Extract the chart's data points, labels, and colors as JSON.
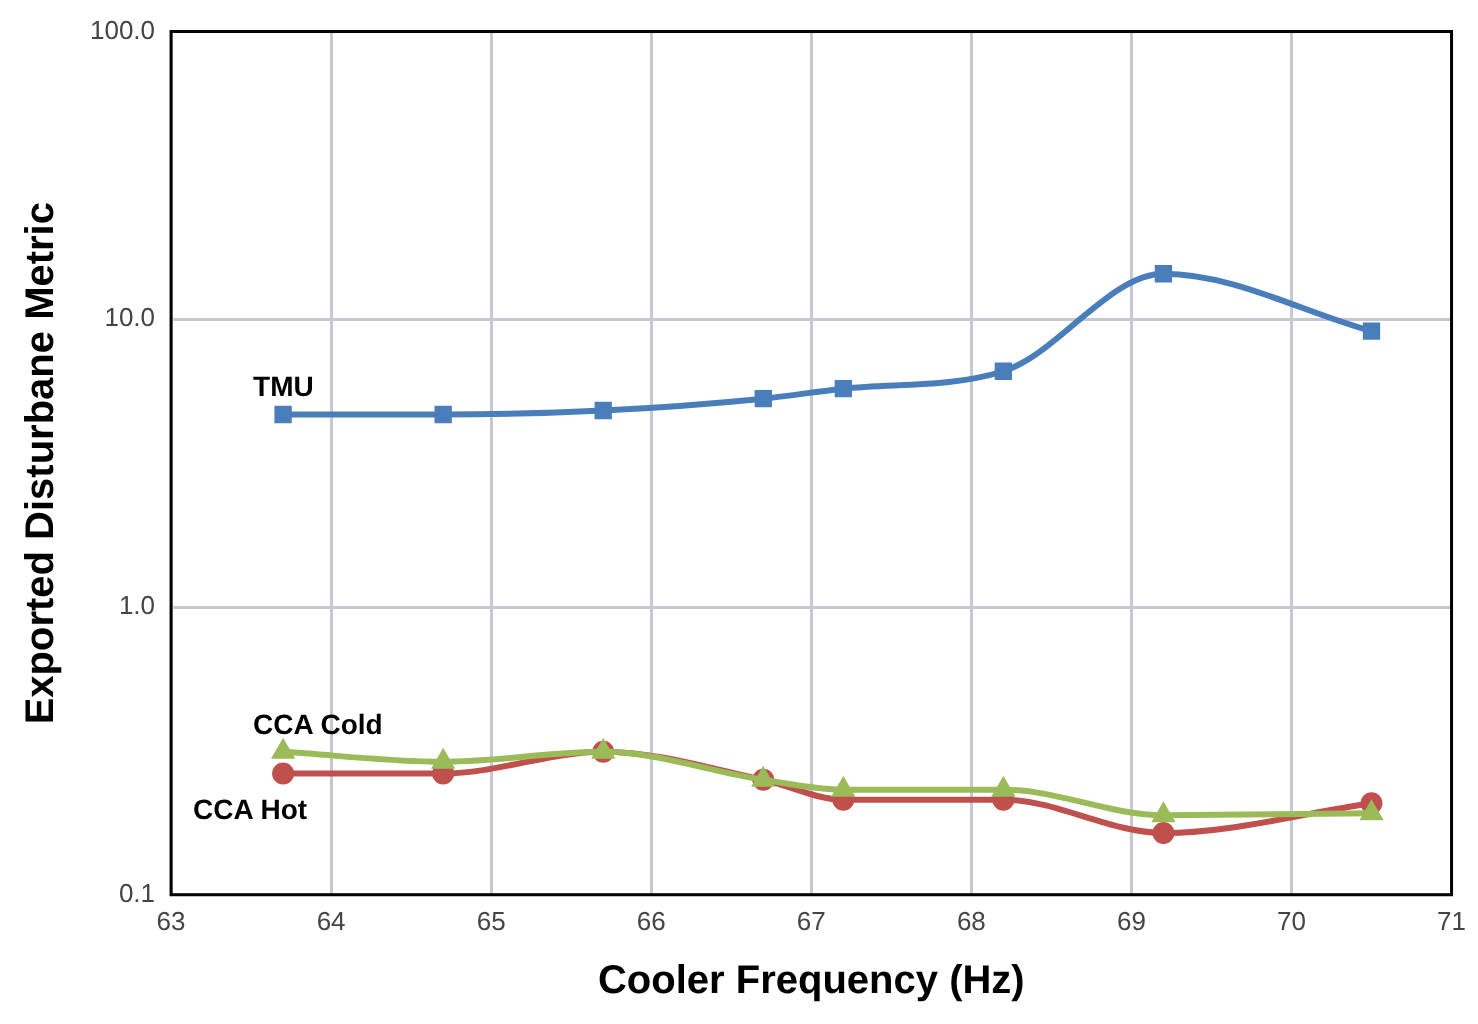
{
  "chart_data": {
    "type": "line",
    "xlabel": "Cooler Frequency (Hz)",
    "ylabel": "Exported Disturbane Metric",
    "log": "y",
    "grid": true,
    "xlim": [
      63,
      71
    ],
    "xticks": [
      63,
      64,
      65,
      66,
      67,
      68,
      69,
      70,
      71
    ],
    "ylim": [
      0.1,
      100
    ],
    "yticks": [
      {
        "value": 0.1,
        "label": "0.1"
      },
      {
        "value": 1,
        "label": "1.0"
      },
      {
        "value": 10,
        "label": "10.0"
      },
      {
        "value": 100,
        "label": "100.0"
      }
    ],
    "x": [
      63.7,
      64.7,
      65.7,
      66.7,
      67.2,
      68.2,
      69.2,
      70.5
    ],
    "series": [
      {
        "name": "TMU",
        "color": "#4a7ebb",
        "marker": "square",
        "values": [
          4.67,
          4.67,
          4.82,
          5.3,
          5.74,
          6.6,
          14.4,
          9.1
        ]
      },
      {
        "name": "CCA Hot",
        "color": "#c0504d",
        "marker": "circle",
        "values": [
          0.264,
          0.264,
          0.314,
          0.251,
          0.214,
          0.214,
          0.164,
          0.208
        ]
      },
      {
        "name": "CCA Cold",
        "color": "#9bbb59",
        "marker": "triangle",
        "values": [
          0.314,
          0.29,
          0.314,
          0.251,
          0.232,
          0.232,
          0.189,
          0.192
        ]
      }
    ]
  }
}
